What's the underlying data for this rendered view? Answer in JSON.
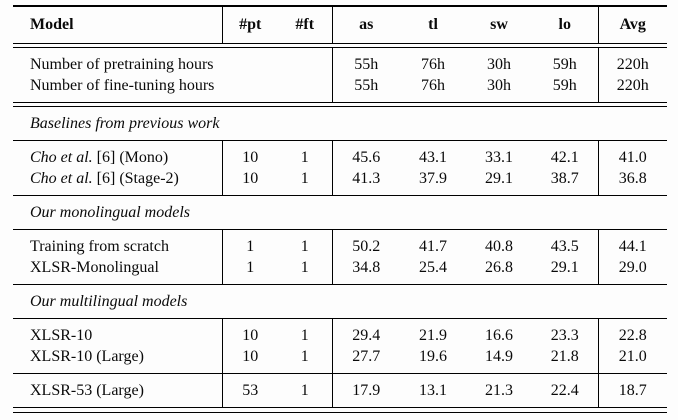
{
  "table": {
    "columns": {
      "model": "Model",
      "pt": "#pt",
      "ft": "#ft",
      "as": "as",
      "tl": "tl",
      "sw": "sw",
      "lo": "lo",
      "avg": "Avg"
    },
    "hours": [
      {
        "label": "Number of pretraining hours",
        "as": "55h",
        "tl": "76h",
        "sw": "30h",
        "lo": "59h",
        "avg": "220h"
      },
      {
        "label": "Number of fine-tuning hours",
        "as": "55h",
        "tl": "76h",
        "sw": "30h",
        "lo": "59h",
        "avg": "220h"
      }
    ],
    "sections": [
      {
        "title": "Baselines from previous work",
        "rows": [
          {
            "model_em": "Cho et al.",
            "model": " [6] (Mono)",
            "pt": "10",
            "ft": "1",
            "as": "45.6",
            "tl": "43.1",
            "sw": "33.1",
            "lo": "42.1",
            "avg": "41.0"
          },
          {
            "model_em": "Cho et al.",
            "model": " [6] (Stage-2)",
            "pt": "10",
            "ft": "1",
            "as": "41.3",
            "tl": "37.9",
            "sw": "29.1",
            "lo": "38.7",
            "avg": "36.8"
          }
        ]
      },
      {
        "title": "Our monolingual models",
        "rows": [
          {
            "model": "Training from scratch",
            "pt": "1",
            "ft": "1",
            "as": "50.2",
            "tl": "41.7",
            "sw": "40.8",
            "lo": "43.5",
            "avg": "44.1"
          },
          {
            "model": "XLSR-Monolingual",
            "pt": "1",
            "ft": "1",
            "as": "34.8",
            "tl": "25.4",
            "sw": "26.8",
            "lo": "29.1",
            "avg": "29.0"
          }
        ]
      },
      {
        "title": "Our multilingual models",
        "rows": [
          {
            "model": "XLSR-10",
            "pt": "10",
            "ft": "1",
            "as": "29.4",
            "tl": "21.9",
            "sw": "16.6",
            "lo": "23.3",
            "avg": "22.8"
          },
          {
            "model": "XLSR-10 (Large)",
            "pt": "10",
            "ft": "1",
            "as": "27.7",
            "tl": "19.6",
            "sw": "14.9",
            "lo": "21.8",
            "avg": "21.0"
          }
        ],
        "extra_rows": [
          {
            "model": "XLSR-53 (Large)",
            "pt": "53",
            "ft": "1",
            "as": "17.9",
            "tl": "13.1",
            "sw": "21.3",
            "lo": "22.4",
            "avg": "18.7"
          }
        ]
      }
    ]
  }
}
